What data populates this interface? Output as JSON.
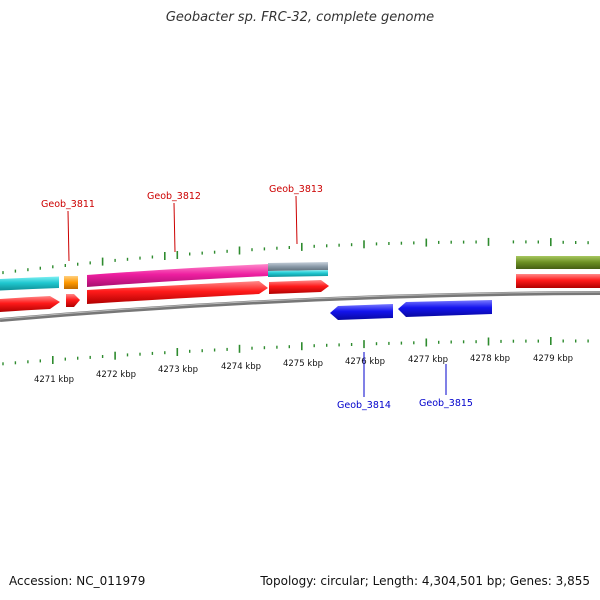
{
  "title": "Geobacter sp. FRC-32, complete genome",
  "footer": {
    "accession": "Accession: NC_011979",
    "summary": "Topology: circular; Length: 4,304,501 bp; Genes: 3,855"
  },
  "colors": {
    "backbone": "#888888",
    "tick": "#2e8b2e",
    "cyan": "#20c8d0",
    "orange": "#ff9900",
    "magenta": "#ee1fa0",
    "steel": "#8a9aa8",
    "olive": "#6b8e23",
    "red": "#ff1a1a",
    "blue": "#1414ee",
    "label_red": "#cc0000",
    "label_blue": "#0000cc"
  },
  "scale_labels": [
    "4271 kbp",
    "4272 kbp",
    "4273 kbp",
    "4274 kbp",
    "4275 kbp",
    "4276 kbp",
    "4277 kbp",
    "4278 kbp",
    "4279 kbp"
  ],
  "gene_labels": {
    "g3811": "Geob_3811",
    "g3812": "Geob_3812",
    "g3813": "Geob_3813",
    "g3814": "Geob_3814",
    "g3815": "Geob_3815"
  }
}
